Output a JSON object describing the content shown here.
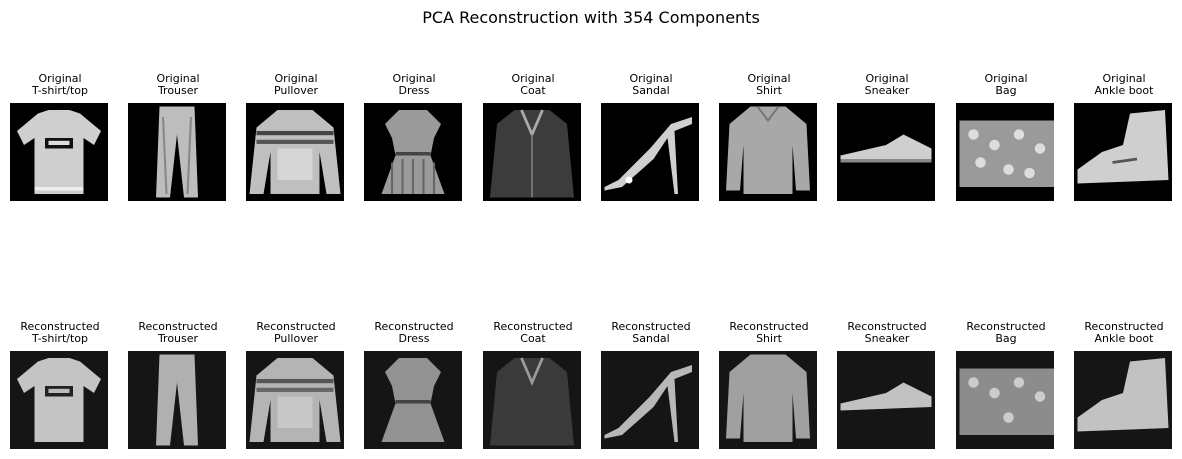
{
  "figure": {
    "title": "PCA Reconstruction with 354 Components"
  },
  "rows": [
    {
      "prefix": "Original",
      "items": [
        {
          "label": "T-shirt/top",
          "icon": "tshirt-image"
        },
        {
          "label": "Trouser",
          "icon": "trouser-image"
        },
        {
          "label": "Pullover",
          "icon": "pullover-image"
        },
        {
          "label": "Dress",
          "icon": "dress-image"
        },
        {
          "label": "Coat",
          "icon": "coat-image"
        },
        {
          "label": "Sandal",
          "icon": "sandal-image"
        },
        {
          "label": "Shirt",
          "icon": "shirt-image"
        },
        {
          "label": "Sneaker",
          "icon": "sneaker-image"
        },
        {
          "label": "Bag",
          "icon": "bag-image"
        },
        {
          "label": "Ankle boot",
          "icon": "ankle-boot-image"
        }
      ]
    },
    {
      "prefix": "Reconstructed",
      "items": [
        {
          "label": "T-shirt/top",
          "icon": "tshirt-image"
        },
        {
          "label": "Trouser",
          "icon": "trouser-image"
        },
        {
          "label": "Pullover",
          "icon": "pullover-image"
        },
        {
          "label": "Dress",
          "icon": "dress-image"
        },
        {
          "label": "Coat",
          "icon": "coat-image"
        },
        {
          "label": "Sandal",
          "icon": "sandal-image"
        },
        {
          "label": "Shirt",
          "icon": "shirt-image"
        },
        {
          "label": "Sneaker",
          "icon": "sneaker-image"
        },
        {
          "label": "Bag",
          "icon": "bag-image"
        },
        {
          "label": "Ankle boot",
          "icon": "ankle-boot-image"
        }
      ]
    }
  ]
}
